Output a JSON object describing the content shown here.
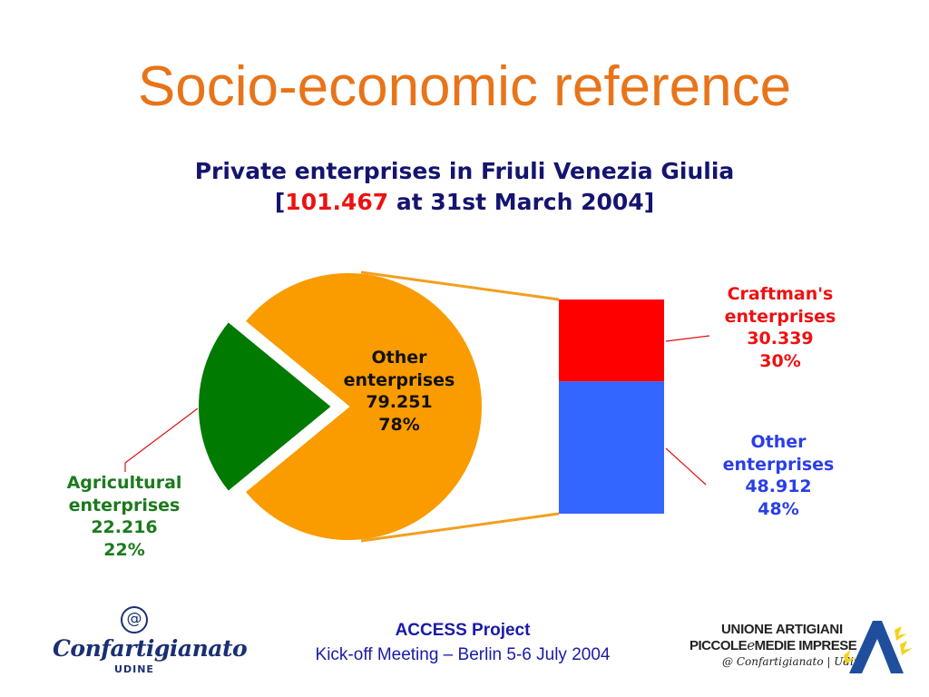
{
  "slide": {
    "title": "Socio-economic reference"
  },
  "chart_data": {
    "type": "pie",
    "title_line1": "Private enterprises in Friuli Venezia Giulia",
    "title_line2_prefix": "[",
    "title_total": "101.467",
    "title_line2_suffix": " at 31st March 2004]",
    "total": 101467,
    "slices": [
      {
        "name_line1": "Other",
        "name_line2": "enterprises",
        "value_label": "79.251",
        "value": 79251,
        "percent": 78,
        "percent_label": "78%",
        "color": "#fa9b00"
      },
      {
        "name_line1": "Agricultural",
        "name_line2": "enterprises",
        "value_label": "22.216",
        "value": 22216,
        "percent": 22,
        "percent_label": "22%",
        "color": "#007a00",
        "exploded": true
      }
    ],
    "breakdown_bar": {
      "of_slice": "Other enterprises",
      "segments": [
        {
          "name_line1": "Craftman's",
          "name_line2": "enterprises",
          "value_label": "30.339",
          "value": 30339,
          "percent": 30,
          "percent_label": "30%",
          "color": "#ff0000"
        },
        {
          "name_line1": "Other",
          "name_line2": "enterprises",
          "value_label": "48.912",
          "value": 48912,
          "percent": 48,
          "percent_label": "48%",
          "color": "#3366ff"
        }
      ]
    },
    "connector_color": "#f2a01e"
  },
  "footer": {
    "project": "ACCESS Project",
    "meeting": "Kick-off Meeting – Berlin 5-6 July 2004"
  },
  "logos": {
    "left": {
      "symbol": "@",
      "brand": "Confartigianato",
      "city": "UDINE"
    },
    "right": {
      "line1": "UNIONE ARTIGIANI",
      "line2_a": "PICCOLE",
      "line2_e": "e",
      "line2_b": "MEDIE IMPRESE",
      "line3": "@ Confartigianato | Udine"
    }
  },
  "colors": {
    "title": "#e8741a",
    "subtitle": "#141470",
    "highlight": "#ee1111",
    "footer_text": "#1a1aa8"
  }
}
